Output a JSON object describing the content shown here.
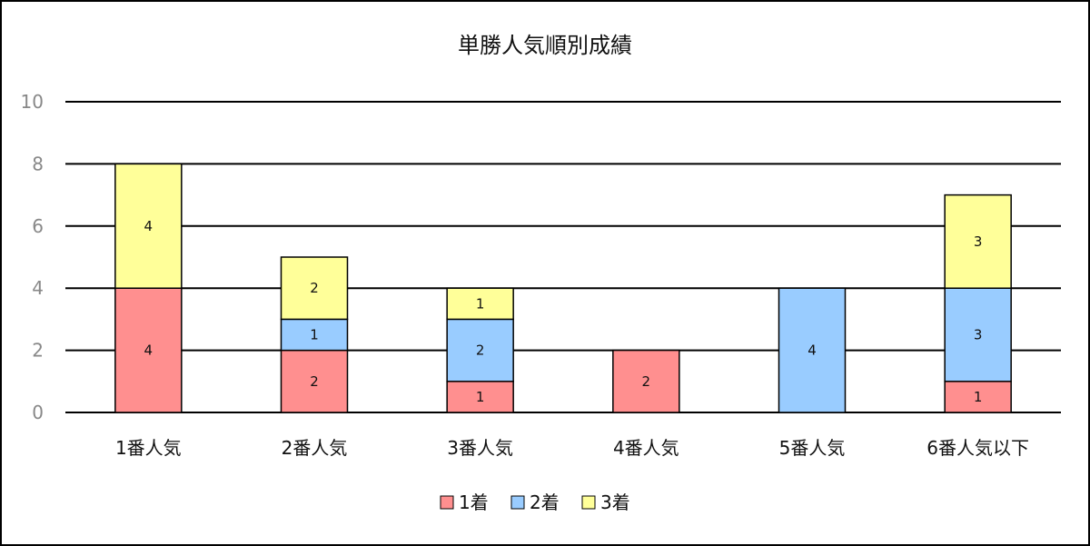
{
  "chart_data": {
    "type": "bar",
    "stacked": true,
    "title": "単勝人気順別成績",
    "xlabel": "",
    "ylabel": "",
    "ylim": [
      0,
      10
    ],
    "yticks": [
      0,
      2,
      4,
      6,
      8,
      10
    ],
    "grid": true,
    "legend_position": "bottom",
    "categories": [
      "1番人気",
      "2番人気",
      "3番人気",
      "4番人気",
      "5番人気",
      "6番人気以下"
    ],
    "series": [
      {
        "name": "1着",
        "color": "#FF8F8F",
        "values": [
          4,
          2,
          1,
          2,
          0,
          1
        ]
      },
      {
        "name": "2着",
        "color": "#99CCFF",
        "values": [
          0,
          1,
          2,
          0,
          4,
          3
        ]
      },
      {
        "name": "3着",
        "color": "#FFFF99",
        "values": [
          4,
          2,
          1,
          0,
          0,
          3
        ]
      }
    ]
  }
}
